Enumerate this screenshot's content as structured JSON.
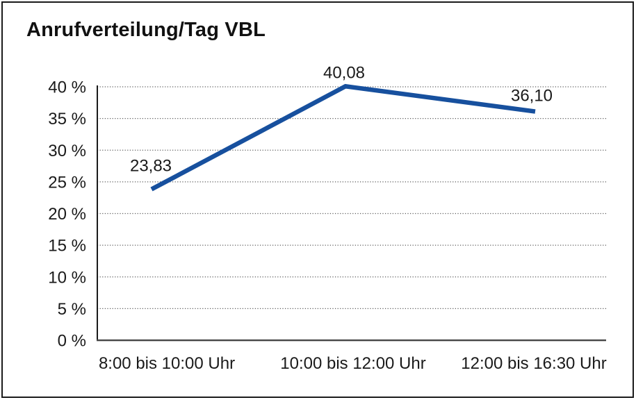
{
  "chart_data": {
    "type": "line",
    "title": "Anrufverteilung/Tag VBL",
    "categories": [
      "8:00 bis 10:00 Uhr",
      "10:00 bis 12:00 Uhr",
      "12:00 bis 16:30 Uhr"
    ],
    "values": [
      23.83,
      40.08,
      36.1
    ],
    "data_labels": [
      "23,83",
      "40,08",
      "36,10"
    ],
    "xlabel": "",
    "ylabel": "",
    "ylim": [
      0,
      40
    ],
    "ytick_values": [
      0,
      5,
      10,
      15,
      20,
      25,
      30,
      35,
      40
    ],
    "ytick_labels": [
      "0 %",
      "5 %",
      "10 %",
      "15 %",
      "20 %",
      "25 %",
      "30 %",
      "35 %",
      "40 %"
    ],
    "grid": "horizontal-dotted",
    "legend": "none",
    "line_color": "#17509e",
    "axis_color": "#1a1a1a",
    "gridline_color": "#595959",
    "text_color": "#1a1a1a",
    "background_color": "#ffffff"
  }
}
